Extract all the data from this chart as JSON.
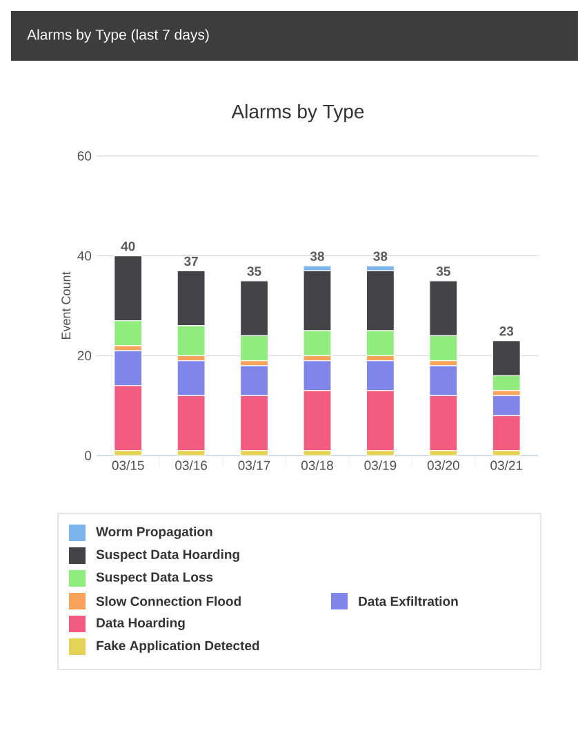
{
  "chart_data": {
    "type": "bar",
    "title": "Alarms by Type (last 7 days)",
    "subtitle": "Alarms by Type",
    "ylabel": "Event Count",
    "categories": [
      "03/15",
      "03/16",
      "03/17",
      "03/18",
      "03/19",
      "03/20",
      "03/21"
    ],
    "stacked": true,
    "ylim": [
      0,
      60
    ],
    "yticks": [
      0,
      20,
      40,
      60
    ],
    "grid": "y",
    "legend": "bottom",
    "series": [
      {
        "name": "Fake Application Detected",
        "color": "#e4d354",
        "values": [
          1,
          1,
          1,
          1,
          1,
          1,
          1
        ]
      },
      {
        "name": "Data Hoarding",
        "color": "#f15c80",
        "values": [
          13,
          11,
          11,
          12,
          12,
          11,
          7
        ]
      },
      {
        "name": "Data Exfiltration",
        "color": "#8085e9",
        "values": [
          7,
          7,
          6,
          6,
          6,
          6,
          4
        ]
      },
      {
        "name": "Slow Connection Flood",
        "color": "#f7a35c",
        "values": [
          1,
          1,
          1,
          1,
          1,
          1,
          1
        ]
      },
      {
        "name": "Suspect Data Loss",
        "color": "#90ed7d",
        "values": [
          5,
          6,
          5,
          5,
          5,
          5,
          3
        ]
      },
      {
        "name": "Suspect Data Hoarding",
        "color": "#434348",
        "values": [
          13,
          11,
          11,
          12,
          12,
          11,
          7
        ]
      },
      {
        "name": "Worm Propagation",
        "color": "#7cb5ec",
        "values": [
          0,
          0,
          0,
          1,
          1,
          0,
          0
        ]
      }
    ],
    "totals": [
      "40",
      "37",
      "35",
      "38",
      "38",
      "35",
      "23"
    ]
  }
}
